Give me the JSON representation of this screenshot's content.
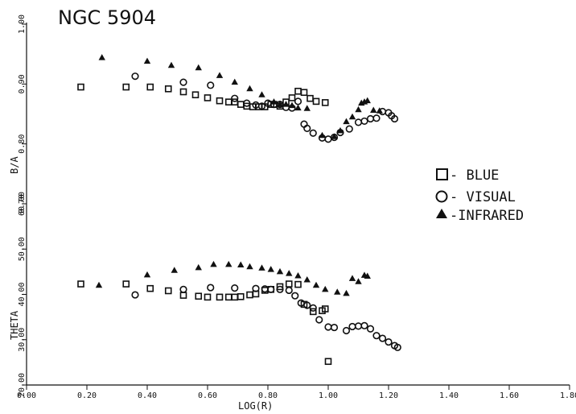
{
  "chart_data": [
    {
      "type": "scatter",
      "title": "NGC 5904",
      "xlabel": "LOG(R)",
      "ylabel": "B/A",
      "xlim": [
        0.0,
        1.8
      ],
      "ylim": [
        0.7,
        1.0
      ],
      "xticks": [
        "0.00",
        "0.20",
        "0.40",
        "0.60",
        "0.80",
        "1.00",
        "1.20",
        "1.40",
        "1.60",
        "1.80"
      ],
      "yticks": [
        "0.70",
        "0.80",
        "0.90",
        "1.00"
      ],
      "series": [
        {
          "name": "BLUE",
          "marker": "square",
          "x": [
            0.18,
            0.33,
            0.41,
            0.47,
            0.52,
            0.56,
            0.6,
            0.64,
            0.67,
            0.69,
            0.71,
            0.73,
            0.75,
            0.77,
            0.79,
            0.81,
            0.82,
            0.84,
            0.86,
            0.88,
            0.9,
            0.92,
            0.94,
            0.96,
            0.99
          ],
          "y": [
            0.895,
            0.895,
            0.895,
            0.892,
            0.887,
            0.882,
            0.877,
            0.872,
            0.87,
            0.87,
            0.866,
            0.863,
            0.862,
            0.862,
            0.862,
            0.866,
            0.866,
            0.863,
            0.87,
            0.877,
            0.888,
            0.886,
            0.876,
            0.871,
            0.869
          ]
        },
        {
          "name": "VISUAL",
          "marker": "circle",
          "x": [
            0.36,
            0.52,
            0.61,
            0.69,
            0.73,
            0.76,
            0.78,
            0.8,
            0.82,
            0.84,
            0.86,
            0.88,
            0.9,
            0.92,
            0.93,
            0.95,
            0.98,
            1.0,
            1.02,
            1.04,
            1.07,
            1.1,
            1.12,
            1.14,
            1.16,
            1.18,
            1.2,
            1.21,
            1.22
          ],
          "y": [
            0.913,
            0.903,
            0.898,
            0.876,
            0.868,
            0.865,
            0.863,
            0.868,
            0.866,
            0.866,
            0.861,
            0.86,
            0.871,
            0.833,
            0.826,
            0.818,
            0.81,
            0.808,
            0.811,
            0.819,
            0.825,
            0.836,
            0.838,
            0.842,
            0.843,
            0.854,
            0.852,
            0.847,
            0.842
          ]
        },
        {
          "name": "INFRARED",
          "marker": "triangle",
          "x": [
            0.25,
            0.4,
            0.48,
            0.57,
            0.64,
            0.69,
            0.74,
            0.78,
            0.82,
            0.84,
            0.86,
            0.88,
            0.9,
            0.93,
            0.98,
            1.02,
            1.04,
            1.06,
            1.08,
            1.1,
            1.11,
            1.12,
            1.13,
            1.15,
            1.17
          ],
          "y": [
            0.944,
            0.938,
            0.931,
            0.927,
            0.914,
            0.903,
            0.892,
            0.882,
            0.87,
            0.866,
            0.866,
            0.864,
            0.86,
            0.859,
            0.814,
            0.812,
            0.822,
            0.837,
            0.845,
            0.857,
            0.868,
            0.87,
            0.872,
            0.856,
            0.855
          ]
        }
      ]
    },
    {
      "type": "scatter",
      "xlabel": "LOG(R)",
      "ylabel": "THETA",
      "xlim": [
        0.0,
        1.8
      ],
      "ylim": [
        20,
        60
      ],
      "xticks": [
        "0.00",
        "0.20",
        "0.40",
        "0.60",
        "0.80",
        "1.00",
        "1.20",
        "1.40",
        "1.60",
        "1.80"
      ],
      "yticks": [
        "20.00",
        "30.00",
        "40.00",
        "50.00",
        "60.00"
      ],
      "series": [
        {
          "name": "BLUE",
          "marker": "square",
          "x": [
            0.18,
            0.33,
            0.41,
            0.47,
            0.52,
            0.57,
            0.6,
            0.64,
            0.67,
            0.69,
            0.71,
            0.74,
            0.76,
            0.79,
            0.81,
            0.84,
            0.87,
            0.9,
            0.92,
            0.95,
            0.98,
            0.99,
            1.0
          ],
          "y": [
            42.3,
            42.3,
            41.3,
            40.8,
            39.8,
            39.6,
            39.4,
            39.4,
            39.4,
            39.4,
            39.5,
            39.9,
            40.1,
            40.9,
            41.1,
            41.7,
            42.3,
            42.2,
            37.8,
            36.2,
            36.4,
            36.8,
            25.2
          ]
        },
        {
          "name": "VISUAL",
          "marker": "circle",
          "x": [
            0.36,
            0.52,
            0.61,
            0.69,
            0.76,
            0.79,
            0.81,
            0.84,
            0.87,
            0.89,
            0.91,
            0.93,
            0.95,
            0.97,
            1.0,
            1.02,
            1.06,
            1.08,
            1.1,
            1.12,
            1.14,
            1.16,
            1.18,
            1.2,
            1.22,
            1.23
          ],
          "y": [
            39.9,
            41.1,
            41.5,
            41.4,
            41.3,
            41.2,
            41.1,
            41.1,
            40.9,
            39.7,
            38.1,
            37.6,
            37.0,
            34.4,
            32.8,
            32.7,
            32.0,
            32.9,
            33.0,
            33.1,
            32.4,
            30.9,
            30.3,
            29.5,
            28.7,
            28.3
          ]
        },
        {
          "name": "INFRARED",
          "marker": "triangle",
          "x": [
            0.24,
            0.4,
            0.49,
            0.57,
            0.62,
            0.67,
            0.71,
            0.74,
            0.78,
            0.81,
            0.84,
            0.87,
            0.9,
            0.93,
            0.96,
            0.99,
            1.03,
            1.06,
            1.08,
            1.1,
            1.12,
            1.13
          ],
          "y": [
            42.0,
            44.3,
            45.3,
            45.9,
            46.6,
            46.6,
            46.5,
            46.1,
            45.8,
            45.5,
            45.0,
            44.6,
            44.1,
            43.2,
            42.0,
            41.1,
            40.5,
            40.2,
            43.5,
            42.8,
            44.2,
            44.0
          ]
        }
      ]
    }
  ],
  "legend": {
    "position": "right-middle",
    "entries": [
      {
        "label": "- BLUE",
        "marker": "square"
      },
      {
        "label": "- VISUAL",
        "marker": "circle"
      },
      {
        "label": "-INFRARED",
        "marker": "triangle"
      }
    ]
  }
}
